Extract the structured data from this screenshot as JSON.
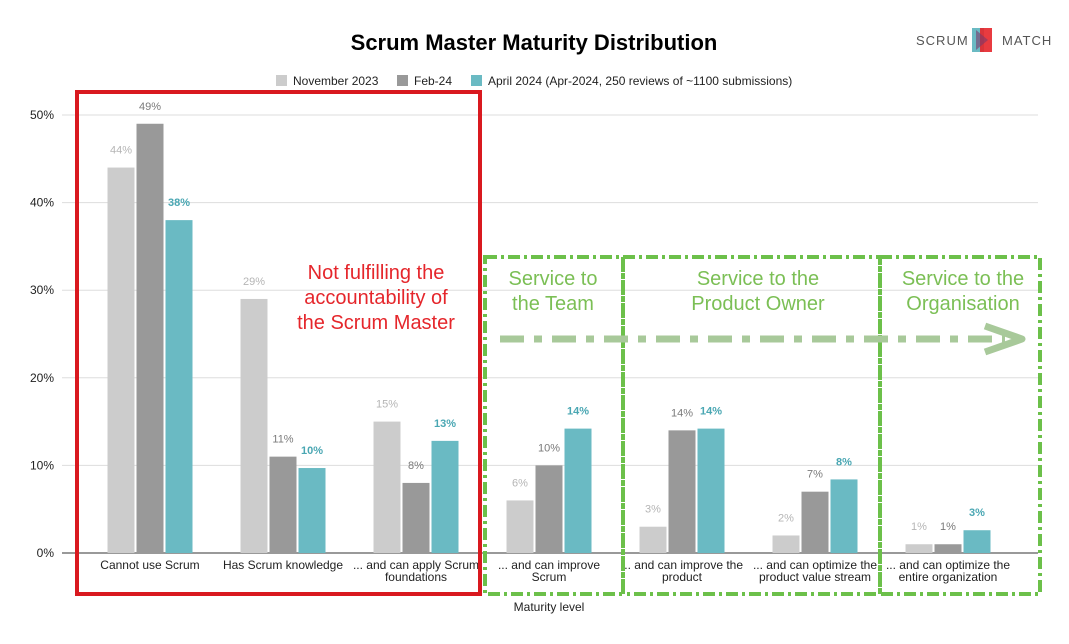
{
  "logo": {
    "left": "SCRUM",
    "right": "MATCH"
  },
  "chart_data": {
    "type": "bar",
    "title": "Scrum Master Maturity Distribution",
    "xlabel": "Maturity level",
    "ylabel": "",
    "ylim": [
      0,
      0.5
    ],
    "yticks": [
      "0%",
      "10%",
      "20%",
      "30%",
      "40%",
      "50%"
    ],
    "grid": true,
    "legend_position": "top",
    "categories": [
      [
        "Cannot use Scrum"
      ],
      [
        "Has Scrum knowledge"
      ],
      [
        "... and can apply Scrum",
        "foundations"
      ],
      [
        "... and can improve",
        "Scrum"
      ],
      [
        "... and can improve the",
        "product"
      ],
      [
        "... and can optimize the",
        "product value stream"
      ],
      [
        "... and can optimize the",
        "entire organization"
      ]
    ],
    "series": [
      {
        "name": "November 2023",
        "color": "#cccccc",
        "label_color": "#b5b5b5",
        "values": [
          0.44,
          0.29,
          0.15,
          0.06,
          0.03,
          0.02,
          0.01
        ],
        "labels": [
          "44%",
          "29%",
          "15%",
          "6%",
          "3%",
          "2%",
          "1%"
        ]
      },
      {
        "name": "Feb-24",
        "color": "#999999",
        "label_color": "#7a7a7a",
        "values": [
          0.49,
          0.11,
          0.08,
          0.1,
          0.14,
          0.07,
          0.01
        ],
        "labels": [
          "49%",
          "11%",
          "8%",
          "10%",
          "14%",
          "7%",
          "1%"
        ]
      },
      {
        "name": "April 2024 (Apr-2024, 250 reviews of ~1100 submissions)",
        "color": "#6abac3",
        "label_color": "#4aa7b3",
        "values": [
          0.38,
          0.097,
          0.128,
          0.142,
          0.142,
          0.084,
          0.026
        ],
        "labels": [
          "38%",
          "10%",
          "13%",
          "14%",
          "14%",
          "8%",
          "3%"
        ]
      }
    ],
    "annotations": {
      "red_box": [
        "Not fulfilling the",
        "accountability of",
        "the Scrum Master"
      ],
      "green_boxes": [
        [
          "Service to",
          "the Team"
        ],
        [
          "Service to the",
          "Product Owner"
        ],
        [
          "Service to the",
          "Organisation"
        ]
      ]
    }
  }
}
